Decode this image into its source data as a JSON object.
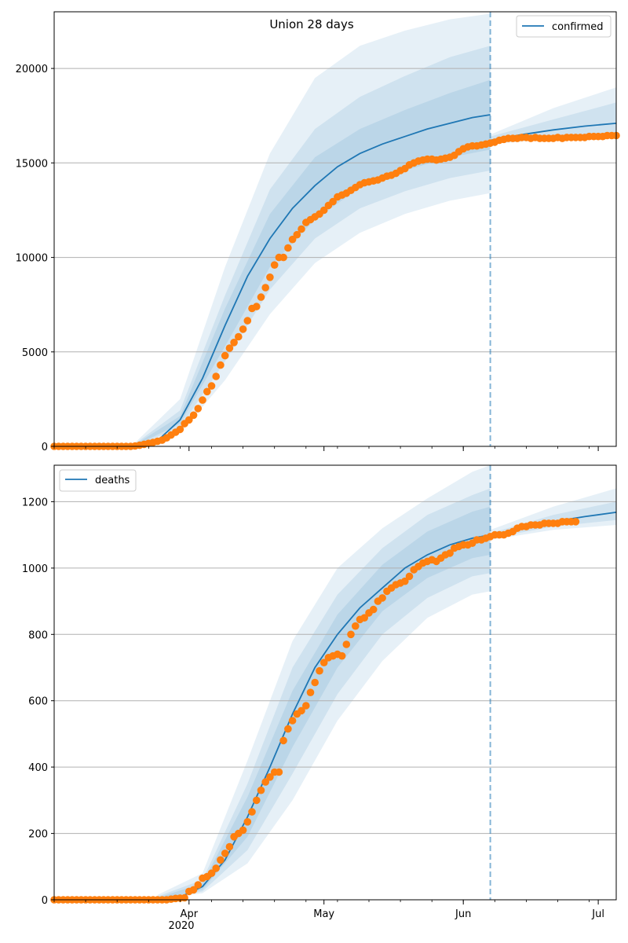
{
  "chart_data": [
    {
      "type": "line",
      "title": "Union 28 days",
      "series_name": "confirmed",
      "legend_position": "top-right",
      "ylim": [
        0,
        23000
      ],
      "xlim": [
        "2020-03-02",
        "2020-07-05"
      ],
      "y_ticks": [
        0,
        5000,
        10000,
        15000,
        20000
      ],
      "y_tick_labels": [
        "0",
        "5000",
        "10000",
        "15000",
        "20000"
      ],
      "grid": "horizontal",
      "forecast_start": "2020-06-07",
      "fit_curve": {
        "x": [
          "2020-03-02",
          "2020-03-20",
          "2020-03-25",
          "2020-03-30",
          "2020-04-04",
          "2020-04-09",
          "2020-04-14",
          "2020-04-19",
          "2020-04-24",
          "2020-04-29",
          "2020-05-04",
          "2020-05-09",
          "2020-05-14",
          "2020-05-19",
          "2020-05-24",
          "2020-05-29",
          "2020-06-03",
          "2020-06-07"
        ],
        "y": [
          0,
          50,
          300,
          1400,
          3600,
          6400,
          9000,
          11000,
          12600,
          13800,
          14800,
          15500,
          16000,
          16400,
          16800,
          17100,
          17400,
          17550
        ]
      },
      "forecast_curve": {
        "x": [
          "2020-06-07",
          "2020-06-14",
          "2020-06-21",
          "2020-06-28",
          "2020-07-05"
        ],
        "y": [
          16200,
          16500,
          16750,
          16950,
          17100
        ]
      },
      "bands": [
        {
          "x": [
            "2020-03-20",
            "2020-03-30",
            "2020-04-09",
            "2020-04-19",
            "2020-04-29",
            "2020-05-09",
            "2020-05-19",
            "2020-05-29",
            "2020-06-07"
          ],
          "lower": [
            0,
            700,
            3500,
            7000,
            9700,
            11300,
            12300,
            13000,
            13400
          ],
          "upper": [
            200,
            2500,
            9500,
            15500,
            19500,
            21200,
            22000,
            22600,
            22900
          ]
        },
        {
          "x": [
            "2020-03-20",
            "2020-03-30",
            "2020-04-09",
            "2020-04-19",
            "2020-04-29",
            "2020-05-09",
            "2020-05-19",
            "2020-05-29",
            "2020-06-07"
          ],
          "lower": [
            20,
            1000,
            4500,
            8300,
            11000,
            12600,
            13500,
            14200,
            14600
          ],
          "upper": [
            140,
            1900,
            8000,
            13600,
            16800,
            18500,
            19600,
            20600,
            21200
          ]
        },
        {
          "x": [
            "2020-03-20",
            "2020-03-30",
            "2020-04-09",
            "2020-04-19",
            "2020-04-29",
            "2020-05-09",
            "2020-05-19",
            "2020-05-29",
            "2020-06-07"
          ],
          "lower": [
            40,
            1200,
            5300,
            9500,
            12000,
            13700,
            14600,
            15300,
            15700
          ],
          "upper": [
            100,
            1600,
            7300,
            12300,
            15300,
            16800,
            17800,
            18700,
            19400
          ]
        }
      ],
      "forecast_bands": [
        {
          "x": [
            "2020-06-07",
            "2020-06-21",
            "2020-07-05"
          ],
          "lower": [
            16000,
            16250,
            16300
          ],
          "upper": [
            16500,
            17900,
            19000
          ]
        },
        {
          "x": [
            "2020-06-07",
            "2020-06-21",
            "2020-07-05"
          ],
          "lower": [
            16050,
            16450,
            16600
          ],
          "upper": [
            16400,
            17300,
            18200
          ]
        }
      ],
      "observed": {
        "start": "2020-03-02",
        "y": [
          0,
          0,
          0,
          0,
          0,
          0,
          0,
          0,
          0,
          0,
          0,
          0,
          0,
          0,
          0,
          0,
          0,
          0,
          20,
          60,
          110,
          160,
          210,
          270,
          330,
          450,
          600,
          750,
          900,
          1200,
          1400,
          1650,
          2000,
          2450,
          2900,
          3200,
          3700,
          4300,
          4800,
          5200,
          5500,
          5800,
          6200,
          6650,
          7300,
          7400,
          7900,
          8400,
          8950,
          9600,
          10000,
          10000,
          10500,
          10950,
          11200,
          11500,
          11850,
          12000,
          12150,
          12300,
          12500,
          12750,
          12950,
          13200,
          13300,
          13400,
          13550,
          13700,
          13850,
          13950,
          14000,
          14050,
          14100,
          14200,
          14300,
          14350,
          14450,
          14600,
          14700,
          14900,
          15000,
          15100,
          15150,
          15200,
          15200,
          15150,
          15200,
          15250,
          15300,
          15400,
          15600,
          15750,
          15850,
          15900,
          15900,
          15950,
          16000,
          16050,
          16100,
          16200,
          16250,
          16300,
          16300,
          16300,
          16350,
          16350,
          16300,
          16350,
          16300,
          16300,
          16300,
          16300,
          16350,
          16300,
          16350,
          16350,
          16350,
          16350,
          16350,
          16400,
          16400,
          16400,
          16400,
          16450,
          16450,
          16450,
          16450,
          16500
        ]
      }
    },
    {
      "type": "line",
      "series_name": "deaths",
      "legend_position": "top-left",
      "ylim": [
        0,
        1310
      ],
      "xlim": [
        "2020-03-02",
        "2020-07-05"
      ],
      "y_ticks": [
        0,
        200,
        400,
        600,
        800,
        1000,
        1200
      ],
      "y_tick_labels": [
        "0",
        "200",
        "400",
        "600",
        "800",
        "1000",
        "1200"
      ],
      "x_tick_labels": [
        "Apr",
        "May",
        "Jun",
        "Jul"
      ],
      "x_tick_dates": [
        "2020-04-01",
        "2020-05-01",
        "2020-06-01",
        "2020-07-01"
      ],
      "x_year_label": "2020",
      "grid": "horizontal",
      "forecast_start": "2020-06-07",
      "fit_curve": {
        "x": [
          "2020-03-02",
          "2020-03-25",
          "2020-03-30",
          "2020-04-04",
          "2020-04-09",
          "2020-04-14",
          "2020-04-19",
          "2020-04-24",
          "2020-04-29",
          "2020-05-04",
          "2020-05-09",
          "2020-05-14",
          "2020-05-19",
          "2020-05-24",
          "2020-05-29",
          "2020-06-03",
          "2020-06-07"
        ],
        "y": [
          0,
          2,
          8,
          40,
          120,
          250,
          400,
          560,
          700,
          800,
          880,
          940,
          1000,
          1040,
          1070,
          1090,
          1100
        ]
      },
      "forecast_curve": {
        "x": [
          "2020-06-07",
          "2020-06-14",
          "2020-06-21",
          "2020-06-28",
          "2020-07-05"
        ],
        "y": [
          1098,
          1120,
          1140,
          1155,
          1168
        ]
      },
      "bands": [
        {
          "x": [
            "2020-03-25",
            "2020-04-04",
            "2020-04-14",
            "2020-04-24",
            "2020-05-04",
            "2020-05-14",
            "2020-05-24",
            "2020-06-03",
            "2020-06-07"
          ],
          "lower": [
            0,
            20,
            110,
            300,
            540,
            720,
            850,
            920,
            930
          ],
          "upper": [
            15,
            80,
            420,
            780,
            1000,
            1120,
            1210,
            1290,
            1310
          ]
        },
        {
          "x": [
            "2020-03-25",
            "2020-04-04",
            "2020-04-14",
            "2020-04-24",
            "2020-05-04",
            "2020-05-14",
            "2020-05-24",
            "2020-06-03",
            "2020-06-07"
          ],
          "lower": [
            0,
            25,
            150,
            380,
            620,
            800,
            910,
            975,
            985
          ],
          "upper": [
            10,
            60,
            350,
            700,
            920,
            1060,
            1160,
            1220,
            1240
          ]
        },
        {
          "x": [
            "2020-03-25",
            "2020-04-04",
            "2020-04-14",
            "2020-04-24",
            "2020-05-04",
            "2020-05-14",
            "2020-05-24",
            "2020-06-03",
            "2020-06-07"
          ],
          "lower": [
            0,
            30,
            190,
            460,
            700,
            870,
            970,
            1030,
            1040
          ],
          "upper": [
            6,
            50,
            310,
            630,
            860,
            1010,
            1110,
            1170,
            1185
          ]
        }
      ],
      "forecast_bands": [
        {
          "x": [
            "2020-06-07",
            "2020-06-21",
            "2020-07-05"
          ],
          "lower": [
            1085,
            1115,
            1130
          ],
          "upper": [
            1115,
            1185,
            1240
          ]
        },
        {
          "x": [
            "2020-06-07",
            "2020-06-21",
            "2020-07-05"
          ],
          "lower": [
            1090,
            1125,
            1145
          ],
          "upper": [
            1105,
            1160,
            1200
          ]
        }
      ],
      "observed": {
        "start": "2020-03-02",
        "y": [
          0,
          0,
          0,
          0,
          0,
          0,
          0,
          0,
          0,
          0,
          0,
          0,
          0,
          0,
          0,
          0,
          0,
          0,
          0,
          0,
          0,
          0,
          0,
          0,
          0,
          0,
          2,
          4,
          5,
          6,
          25,
          30,
          45,
          65,
          70,
          80,
          95,
          120,
          140,
          160,
          190,
          200,
          210,
          235,
          265,
          300,
          330,
          355,
          370,
          385,
          385,
          480,
          515,
          540,
          560,
          570,
          585,
          625,
          655,
          690,
          715,
          730,
          735,
          740,
          735,
          770,
          800,
          825,
          845,
          850,
          865,
          875,
          900,
          910,
          930,
          940,
          950,
          955,
          960,
          975,
          995,
          1005,
          1015,
          1020,
          1025,
          1020,
          1030,
          1040,
          1045,
          1060,
          1065,
          1070,
          1070,
          1075,
          1085,
          1085,
          1090,
          1095,
          1100,
          1100,
          1100,
          1105,
          1110,
          1120,
          1125,
          1125,
          1130,
          1130,
          1130,
          1135,
          1135,
          1135,
          1135,
          1140,
          1140,
          1140,
          1140
        ]
      }
    }
  ]
}
